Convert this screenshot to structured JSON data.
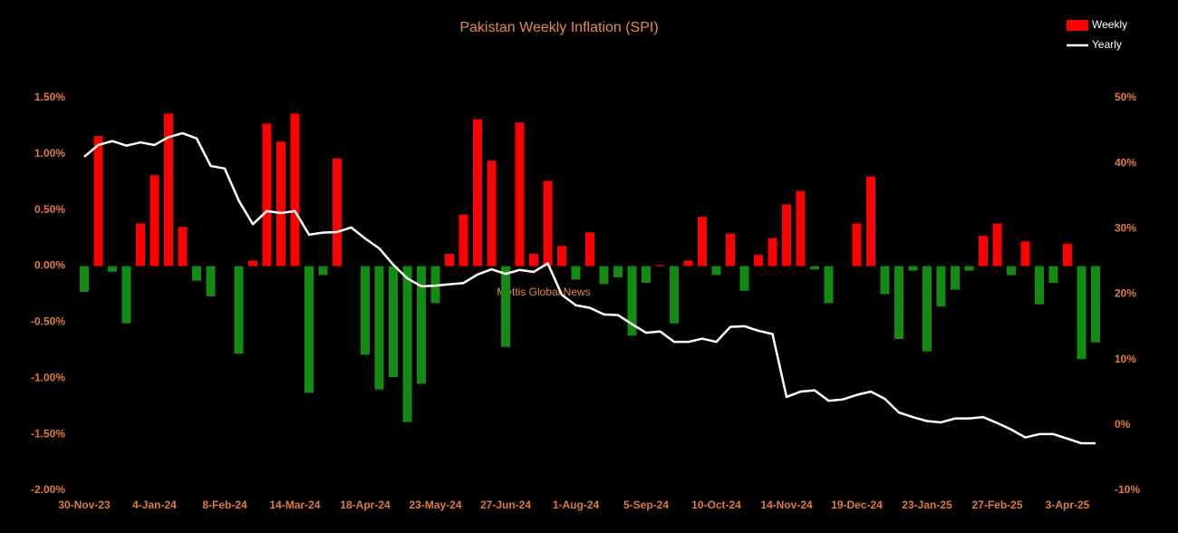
{
  "chart_data": {
    "type": "bar_line",
    "title": "Pakistan Weekly Inflation (SPI)",
    "annotation": "Mettis Global News",
    "categories": [
      "30-Nov-23",
      null,
      null,
      null,
      null,
      "4-Jan-24",
      null,
      null,
      null,
      null,
      "8-Feb-24",
      null,
      null,
      null,
      null,
      "14-Mar-24",
      null,
      null,
      null,
      null,
      "18-Apr-24",
      null,
      null,
      null,
      null,
      "23-May-24",
      null,
      null,
      null,
      null,
      "27-Jun-24",
      null,
      null,
      null,
      null,
      "1-Aug-24",
      null,
      null,
      null,
      null,
      "5-Sep-24",
      null,
      null,
      null,
      null,
      "10-Oct-24",
      null,
      null,
      null,
      null,
      "14-Nov-24",
      null,
      null,
      null,
      null,
      "19-Dec-24",
      null,
      null,
      null,
      null,
      "23-Jan-25",
      null,
      null,
      null,
      null,
      "27-Feb-25",
      null,
      null,
      null,
      null,
      "3-Apr-25",
      null,
      null
    ],
    "series": [
      {
        "name": "Weekly",
        "color": "#ff0000",
        "negative_color": "#138a13",
        "axis": "y",
        "values": [
          -0.23,
          1.16,
          -0.05,
          -0.51,
          0.38,
          0.81,
          1.36,
          0.35,
          -0.13,
          -0.27,
          0,
          -0.78,
          0.05,
          1.27,
          1.11,
          1.36,
          -1.13,
          -0.08,
          0.96,
          0,
          -0.79,
          -1.1,
          -0.99,
          -1.39,
          -1.05,
          -0.33,
          0.11,
          0.46,
          1.31,
          0.94,
          -0.72,
          1.28,
          0.11,
          0.76,
          0.18,
          -0.12,
          0.3,
          -0.16,
          -0.1,
          -0.62,
          -0.15,
          0.01,
          -0.51,
          0.05,
          0.44,
          -0.08,
          0.29,
          -0.22,
          0.1,
          0.25,
          0.55,
          0.67,
          -0.03,
          -0.33,
          0,
          0.38,
          0.8,
          -0.25,
          -0.65,
          -0.04,
          -0.76,
          -0.36,
          -0.21,
          -0.04,
          0.27,
          0.38,
          -0.08,
          0.22,
          -0.34,
          -0.15,
          0.2,
          -0.83,
          -0.68
        ]
      },
      {
        "name": "Yearly",
        "color": "#ffffff",
        "axis": "y2",
        "values": [
          41.0,
          42.8,
          43.4,
          42.7,
          43.2,
          42.8,
          44.0,
          44.6,
          43.8,
          39.6,
          39.2,
          34.3,
          30.7,
          32.7,
          32.4,
          32.7,
          29.1,
          29.4,
          29.5,
          30.2,
          28.5,
          27.0,
          24.5,
          22.4,
          21.2,
          21.3,
          21.5,
          21.7,
          23.0,
          23.8,
          23.1,
          23.7,
          23.4,
          24.7,
          19.9,
          18.3,
          17.9,
          16.9,
          16.8,
          15.4,
          14.1,
          14.3,
          12.7,
          12.7,
          13.2,
          12.7,
          15.0,
          15.1,
          14.4,
          13.9,
          4.3,
          5.1,
          5.3,
          3.7,
          3.9,
          4.6,
          5.1,
          4.0,
          1.9,
          1.2,
          0.6,
          0.4,
          1.0,
          1.0,
          1.2,
          0.3,
          -0.7,
          -1.9,
          -1.4,
          -1.4,
          -2.1,
          -2.8,
          -2.8
        ]
      }
    ],
    "ylim": [
      -2,
      1.5
    ],
    "yticks": [
      {
        "value": -2,
        "label": "-2.00%"
      },
      {
        "value": -1.5,
        "label": "-1.50%"
      },
      {
        "value": -1,
        "label": "-1.00%"
      },
      {
        "value": -0.5,
        "label": "-0.50%"
      },
      {
        "value": 0,
        "label": "0.00%"
      },
      {
        "value": 0.5,
        "label": "0.50%"
      },
      {
        "value": 1,
        "label": "1.00%"
      },
      {
        "value": 1.5,
        "label": "1.50%"
      }
    ],
    "y2lim": [
      -10,
      50
    ],
    "y2ticks": [
      {
        "value": -10,
        "label": "-10%"
      },
      {
        "value": 0,
        "label": "0%"
      },
      {
        "value": 10,
        "label": "10%"
      },
      {
        "value": 20,
        "label": "20%"
      },
      {
        "value": 30,
        "label": "30%"
      },
      {
        "value": 40,
        "label": "40%"
      },
      {
        "value": 50,
        "label": "50%"
      }
    ],
    "grid": false,
    "legend": "top-right"
  }
}
